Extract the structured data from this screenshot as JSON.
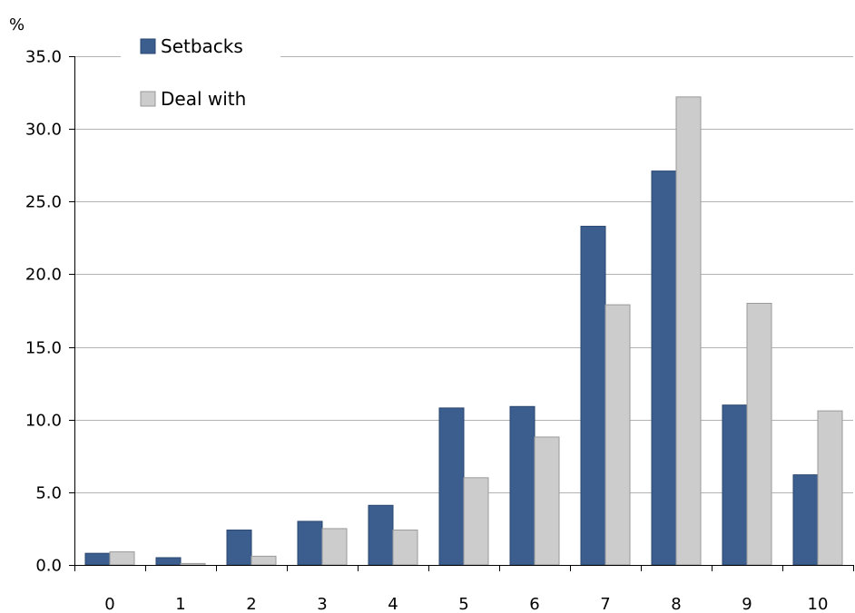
{
  "chart_data": {
    "type": "bar",
    "title": "",
    "xlabel": "",
    "ylabel": "%",
    "ylim": [
      0,
      35
    ],
    "yticks": [
      "0.0",
      "5.0",
      "10.0",
      "15.0",
      "20.0",
      "25.0",
      "30.0",
      "35.0"
    ],
    "ytick_values": [
      0,
      5,
      10,
      15,
      20,
      25,
      30,
      35
    ],
    "grid": true,
    "legend_position": "top-left",
    "categories": [
      "0",
      "1",
      "2",
      "3",
      "4",
      "5",
      "6",
      "7",
      "8",
      "9",
      "10"
    ],
    "series": [
      {
        "name": "Setbacks",
        "color": "#3B5E8F",
        "values": [
          0.8,
          0.5,
          2.4,
          3.0,
          4.1,
          10.8,
          10.9,
          23.3,
          27.1,
          11.0,
          6.2
        ]
      },
      {
        "name": "Deal with",
        "color": "#CCCCCC",
        "values": [
          0.9,
          0.1,
          0.6,
          2.5,
          2.4,
          6.0,
          8.8,
          17.9,
          32.2,
          18.0,
          10.6
        ]
      }
    ]
  }
}
